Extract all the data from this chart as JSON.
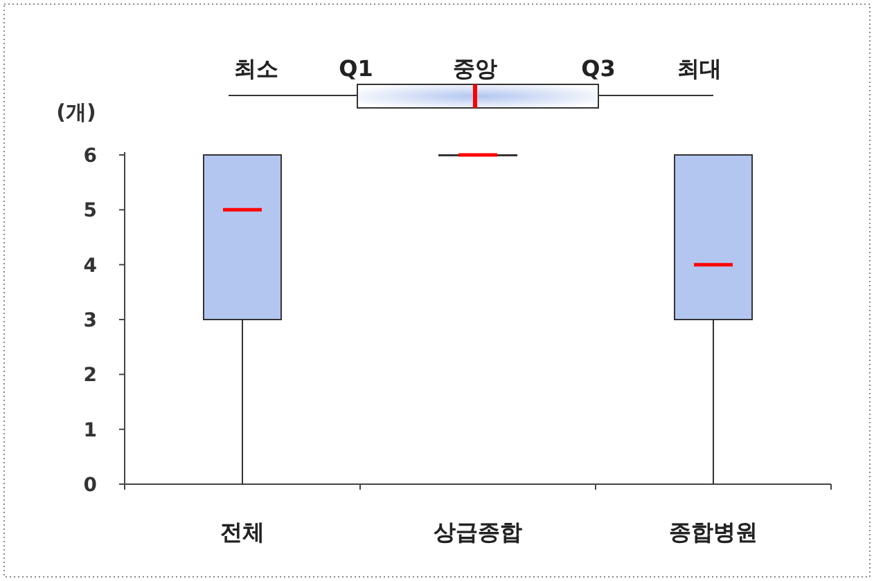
{
  "chart_data": {
    "type": "box",
    "ylabel": "(개)",
    "categories": [
      "전체",
      "상급종합",
      "종합병원"
    ],
    "boxes": [
      {
        "low": 0,
        "q1": 3,
        "median": 5,
        "q3": 6,
        "high": 6
      },
      {
        "low": 6,
        "q1": 6,
        "median": 6,
        "q3": 6,
        "high": 6
      },
      {
        "low": 0,
        "q1": 3,
        "median": 4,
        "q3": 6,
        "high": 6
      }
    ],
    "color": "#b3c6f0",
    "ylim": [
      0,
      6
    ],
    "yticks": [
      0,
      1,
      2,
      3,
      4,
      5,
      6
    ],
    "grid": false,
    "annotations": [
      "최소",
      "Q1",
      "중앙",
      "Q3",
      "최대"
    ]
  }
}
